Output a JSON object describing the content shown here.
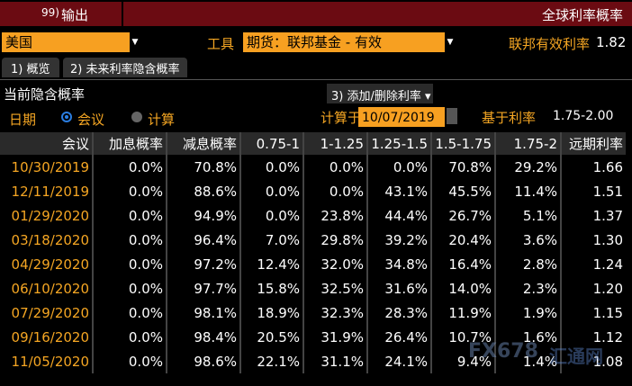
{
  "toolbar": {
    "code": "99)",
    "action": "输出",
    "title": "全球利率概率"
  },
  "controls": {
    "country": "美国",
    "instrument_label": "工具",
    "instrument": "期货：联邦基金 - 有效",
    "rate_label": "联邦有效利率",
    "rate": "1.82"
  },
  "tabs": [
    "1) 概览",
    "2) 未来利率隐含概率"
  ],
  "section": {
    "title": "当前隐含概率",
    "button": "3) 添加/删除利率 ▾"
  },
  "options": {
    "date_label": "日期",
    "radio_meeting": "会议",
    "radio_calc": "计算",
    "calc_label": "计算于",
    "calc_date": "10/07/2019",
    "base_label": "基于利率",
    "base_rate": "1.75-2.00"
  },
  "table": {
    "header": [
      "会议",
      "加息概率",
      "减息概率",
      "0.75-1",
      "1-1.25",
      "1.25-1.5",
      "1.5-1.75",
      "1.75-2",
      "远期利率"
    ],
    "rows": [
      [
        "10/30/2019",
        "0.0%",
        "70.8%",
        "0.0%",
        "0.0%",
        "0.0%",
        "70.8%",
        "29.2%",
        "1.66"
      ],
      [
        "12/11/2019",
        "0.0%",
        "88.6%",
        "0.0%",
        "0.0%",
        "43.1%",
        "45.5%",
        "11.4%",
        "1.51"
      ],
      [
        "01/29/2020",
        "0.0%",
        "94.9%",
        "0.0%",
        "23.8%",
        "44.4%",
        "26.7%",
        "5.1%",
        "1.37"
      ],
      [
        "03/18/2020",
        "0.0%",
        "96.4%",
        "7.0%",
        "29.8%",
        "39.2%",
        "20.4%",
        "3.6%",
        "1.30"
      ],
      [
        "04/29/2020",
        "0.0%",
        "97.2%",
        "12.4%",
        "32.0%",
        "34.8%",
        "16.4%",
        "2.8%",
        "1.24"
      ],
      [
        "06/10/2020",
        "0.0%",
        "97.7%",
        "15.8%",
        "32.5%",
        "31.6%",
        "14.0%",
        "2.3%",
        "1.20"
      ],
      [
        "07/29/2020",
        "0.0%",
        "98.1%",
        "18.9%",
        "32.3%",
        "28.3%",
        "11.9%",
        "1.9%",
        "1.15"
      ],
      [
        "09/16/2020",
        "0.0%",
        "98.4%",
        "20.5%",
        "31.9%",
        "26.4%",
        "10.7%",
        "1.6%",
        "1.12"
      ],
      [
        "11/05/2020",
        "0.0%",
        "98.6%",
        "22.1%",
        "31.1%",
        "24.1%",
        "9.4%",
        "1.4%",
        "1.08"
      ]
    ]
  },
  "watermark": {
    "brand": "FX678",
    "name": "汇通网"
  }
}
